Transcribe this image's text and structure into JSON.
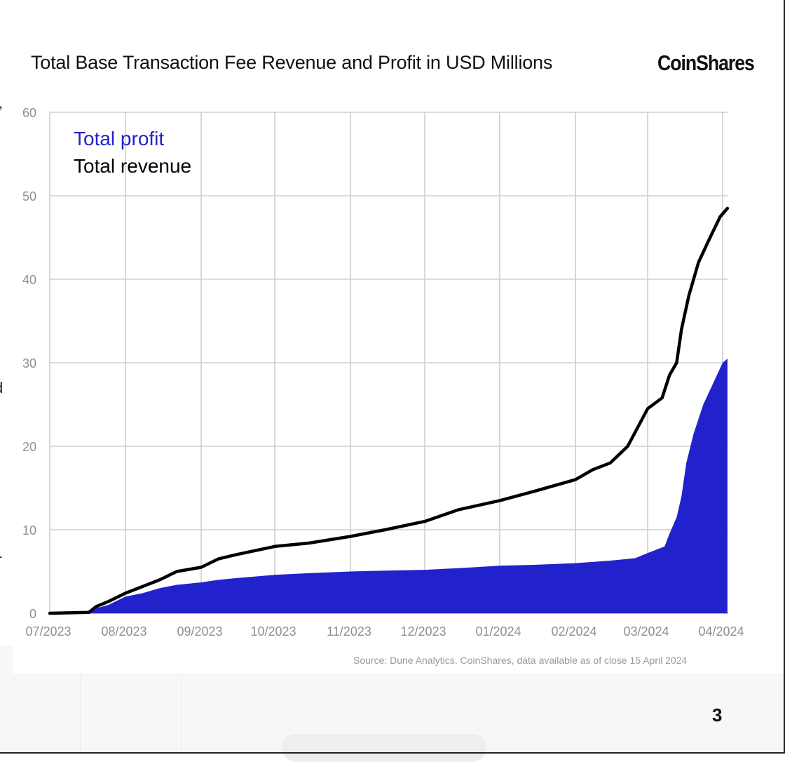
{
  "header": {
    "title": "Total Base Transaction Fee Revenue and Profit in USD Millions",
    "brand": "CoinShares"
  },
  "footer": {
    "source": "Source: Dune Analytics, CoinShares, data available as of close 15 April 2024",
    "page_number": "3"
  },
  "edge_fragments": [
    ",",
    "d",
    "-"
  ],
  "colors": {
    "profit": "#2222cc",
    "revenue": "#000000",
    "grid": "#cfcfcf",
    "tick_text": "#8f8f8f"
  },
  "chart_data": {
    "type": "area",
    "title": "Total Base Transaction Fee Revenue and Profit in USD Millions",
    "xlabel": "",
    "ylabel": "",
    "x_ticks": [
      "07/2023",
      "08/2023",
      "09/2023",
      "10/2023",
      "11/2023",
      "12/2023",
      "01/2024",
      "02/2024",
      "03/2024",
      "04/2024"
    ],
    "y_ticks": [
      "0",
      "10",
      "20",
      "30",
      "40",
      "50",
      "60"
    ],
    "ylim": [
      0,
      60
    ],
    "xlim": [
      "2023-07-01",
      "2024-04-01"
    ],
    "grid": true,
    "legend_position": "top-left",
    "series": [
      {
        "name": "Total profit",
        "style": "filled area",
        "color": "#2222cc",
        "points": [
          [
            "2023-07-01",
            0
          ],
          [
            "2023-07-17",
            0.1
          ],
          [
            "2023-07-20",
            0.6
          ],
          [
            "2023-07-25",
            1.0
          ],
          [
            "2023-08-01",
            2.0
          ],
          [
            "2023-08-08",
            2.4
          ],
          [
            "2023-08-15",
            3.0
          ],
          [
            "2023-08-22",
            3.4
          ],
          [
            "2023-09-01",
            3.7
          ],
          [
            "2023-09-08",
            4.0
          ],
          [
            "2023-09-15",
            4.2
          ],
          [
            "2023-10-01",
            4.6
          ],
          [
            "2023-10-15",
            4.8
          ],
          [
            "2023-11-01",
            5.0
          ],
          [
            "2023-11-15",
            5.1
          ],
          [
            "2023-12-01",
            5.2
          ],
          [
            "2023-12-15",
            5.4
          ],
          [
            "2024-01-01",
            5.7
          ],
          [
            "2024-01-15",
            5.8
          ],
          [
            "2024-02-01",
            6.0
          ],
          [
            "2024-02-15",
            6.3
          ],
          [
            "2024-02-25",
            6.6
          ],
          [
            "2024-03-01",
            7.2
          ],
          [
            "2024-03-08",
            8.0
          ],
          [
            "2024-03-10",
            9.5
          ],
          [
            "2024-03-13",
            11.5
          ],
          [
            "2024-03-15",
            14.0
          ],
          [
            "2024-03-17",
            18.0
          ],
          [
            "2024-03-20",
            21.5
          ],
          [
            "2024-03-24",
            25.0
          ],
          [
            "2024-03-28",
            27.5
          ],
          [
            "2024-04-01",
            30.0
          ],
          [
            "2024-04-03",
            30.5
          ]
        ]
      },
      {
        "name": "Total revenue",
        "style": "line",
        "color": "#000000",
        "points": [
          [
            "2023-07-01",
            0
          ],
          [
            "2023-07-17",
            0.1
          ],
          [
            "2023-07-20",
            0.8
          ],
          [
            "2023-07-25",
            1.4
          ],
          [
            "2023-08-01",
            2.4
          ],
          [
            "2023-08-08",
            3.2
          ],
          [
            "2023-08-15",
            4.0
          ],
          [
            "2023-08-22",
            5.0
          ],
          [
            "2023-09-01",
            5.5
          ],
          [
            "2023-09-08",
            6.5
          ],
          [
            "2023-09-15",
            7.0
          ],
          [
            "2023-10-01",
            8.0
          ],
          [
            "2023-10-15",
            8.4
          ],
          [
            "2023-11-01",
            9.2
          ],
          [
            "2023-11-15",
            10.0
          ],
          [
            "2023-12-01",
            11.0
          ],
          [
            "2023-12-15",
            12.4
          ],
          [
            "2024-01-01",
            13.5
          ],
          [
            "2024-01-15",
            14.6
          ],
          [
            "2024-02-01",
            16.0
          ],
          [
            "2024-02-08",
            17.2
          ],
          [
            "2024-02-15",
            18.0
          ],
          [
            "2024-02-22",
            20.0
          ],
          [
            "2024-03-01",
            24.5
          ],
          [
            "2024-03-07",
            25.8
          ],
          [
            "2024-03-10",
            28.5
          ],
          [
            "2024-03-13",
            30.0
          ],
          [
            "2024-03-15",
            34.0
          ],
          [
            "2024-03-18",
            38.0
          ],
          [
            "2024-03-22",
            42.0
          ],
          [
            "2024-03-26",
            44.5
          ],
          [
            "2024-03-31",
            47.5
          ],
          [
            "2024-04-03",
            48.5
          ]
        ]
      }
    ]
  }
}
